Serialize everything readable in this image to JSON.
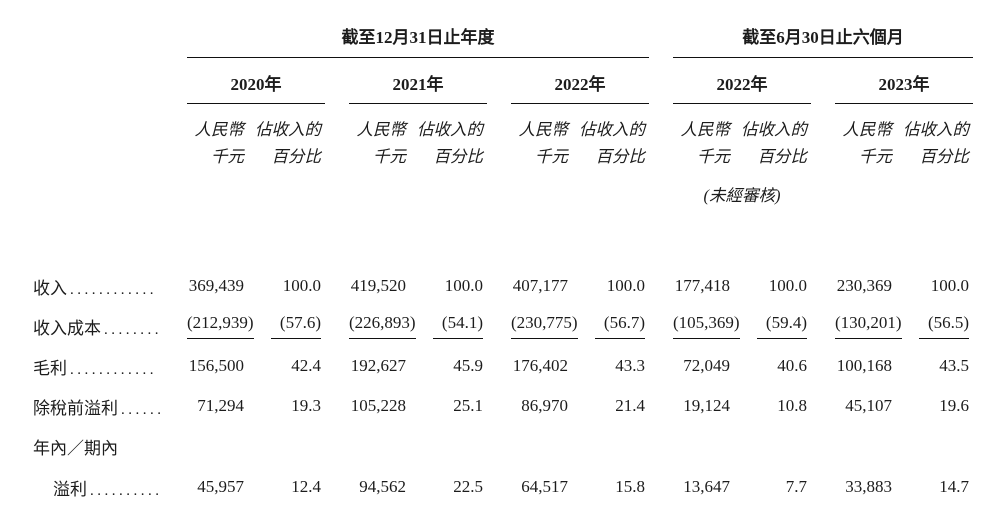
{
  "colors": {
    "background": "#ffffff",
    "text": "#1c1c1c",
    "rule": "#111111"
  },
  "table": {
    "period_groups": [
      {
        "label": "截至12月31日止年度",
        "years": [
          "2020年",
          "2021年",
          "2022年"
        ]
      },
      {
        "label": "截至6月30日止六個月",
        "years": [
          "2022年",
          "2023年"
        ]
      }
    ],
    "year_headers": [
      "2020年",
      "2021年",
      "2022年",
      "2022年",
      "2023年"
    ],
    "subheader": {
      "value_line1": "人民幣",
      "value_line2": "千元",
      "pct_line1": "佔收入的",
      "pct_line2": "百分比"
    },
    "unaudited_note": "(未經審核)",
    "rows": [
      {
        "label": "收入",
        "dots": "............",
        "values": [
          "369,439",
          "100.0",
          "419,520",
          "100.0",
          "407,177",
          "100.0",
          "177,418",
          "100.0",
          "230,369",
          "100.0"
        ]
      },
      {
        "label": "收入成本",
        "dots": "........",
        "values": [
          "(212,939)",
          "(57.6)",
          "(226,893)",
          "(54.1)",
          "(230,775)",
          "(56.7)",
          "(105,369)",
          "(59.4)",
          "(130,201)",
          "(56.5)"
        ]
      },
      {
        "label": "毛利",
        "dots": "............",
        "values": [
          "156,500",
          "42.4",
          "192,627",
          "45.9",
          "176,402",
          "43.3",
          "72,049",
          "40.6",
          "100,168",
          "43.5"
        ]
      },
      {
        "label": "除稅前溢利",
        "dots": "......",
        "values": [
          "71,294",
          "19.3",
          "105,228",
          "25.1",
          "86,970",
          "21.4",
          "19,124",
          "10.8",
          "45,107",
          "19.6"
        ]
      },
      {
        "label": "年內／期內",
        "dots": "",
        "values": []
      },
      {
        "label": "溢利",
        "dots": "..........",
        "values": [
          "45,957",
          "12.4",
          "94,562",
          "22.5",
          "64,517",
          "15.8",
          "13,647",
          "7.7",
          "33,883",
          "14.7"
        ]
      }
    ]
  }
}
